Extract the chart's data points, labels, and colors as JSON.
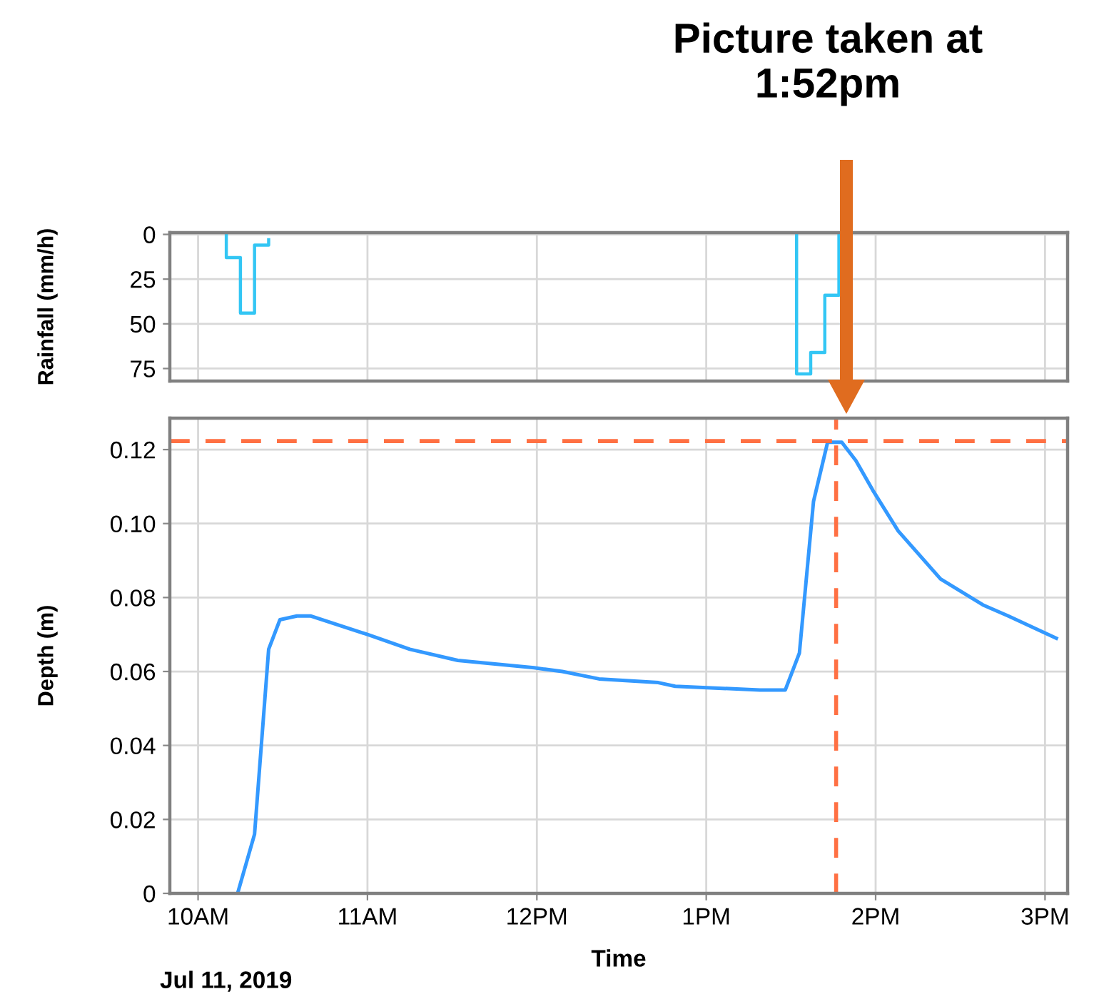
{
  "chart_data": [
    {
      "type": "step",
      "ylabel": "Rainfall (mm/h)",
      "xlim": [
        "2019-07-11T09:50",
        "2019-07-11T15:08"
      ],
      "xticks": [
        {
          "value": "2019-07-11T10:00",
          "label": null
        },
        {
          "value": "2019-07-11T11:00",
          "label": null
        },
        {
          "value": "2019-07-11T12:00",
          "label": null
        },
        {
          "value": "2019-07-11T13:00",
          "label": null
        },
        {
          "value": "2019-07-11T14:00",
          "label": null
        },
        {
          "value": "2019-07-11T15:00",
          "label": null
        }
      ],
      "ylim": [
        82,
        -1
      ],
      "yticks": [
        0,
        25,
        50,
        75
      ],
      "grid": true,
      "tick_labels": "y",
      "legend": false,
      "series": [
        {
          "color": "#33c6f4",
          "x": [
            "2019-07-11T10:10",
            "2019-07-11T10:10",
            "2019-07-11T10:15",
            "2019-07-11T10:20",
            "2019-07-11T10:25"
          ],
          "values": [
            0,
            13,
            44,
            6,
            3
          ]
        },
        {
          "color": "#33c6f4",
          "x": [
            "2019-07-11T13:32",
            "2019-07-11T13:32",
            "2019-07-11T13:37",
            "2019-07-11T13:42",
            "2019-07-11T13:47"
          ],
          "values": [
            0,
            78,
            66,
            34,
            0
          ]
        }
      ]
    },
    {
      "type": "line",
      "xlabel": "Time",
      "ylabel": "Depth (m)",
      "xlim": [
        "2019-07-11T09:50",
        "2019-07-11T15:08"
      ],
      "xticks": [
        {
          "value": "2019-07-11T10:00",
          "label": "10AM"
        },
        {
          "value": "2019-07-11T11:00",
          "label": "11AM"
        },
        {
          "value": "2019-07-11T12:00",
          "label": "12PM"
        },
        {
          "value": "2019-07-11T13:00",
          "label": "1PM"
        },
        {
          "value": "2019-07-11T14:00",
          "label": "2PM"
        },
        {
          "value": "2019-07-11T15:00",
          "label": "3PM"
        }
      ],
      "ylim": [
        0,
        0.1285
      ],
      "yticks": [
        0,
        0.02,
        0.04,
        0.06,
        0.08,
        {
          "value": 0.1,
          "label": "0.10"
        },
        0.12
      ],
      "grid": true,
      "legend": false,
      "series": [
        {
          "color": "#3399ff",
          "x": [
            "2019-07-11T10:14",
            "2019-07-11T10:20",
            "2019-07-11T10:25",
            "2019-07-11T10:29",
            "2019-07-11T10:35",
            "2019-07-11T10:40",
            "2019-07-11T11:00",
            "2019-07-11T11:15",
            "2019-07-11T11:32",
            "2019-07-11T11:59",
            "2019-07-11T12:09",
            "2019-07-11T12:22",
            "2019-07-11T12:43",
            "2019-07-11T12:49",
            "2019-07-11T13:19",
            "2019-07-11T13:28",
            "2019-07-11T13:33",
            "2019-07-11T13:38",
            "2019-07-11T13:43",
            "2019-07-11T13:48",
            "2019-07-11T13:53",
            "2019-07-11T13:59",
            "2019-07-11T14:08",
            "2019-07-11T14:23",
            "2019-07-11T14:38",
            "2019-07-11T14:47",
            "2019-07-11T15:04"
          ],
          "values": [
            0,
            0.016,
            0.066,
            0.074,
            0.075,
            0.075,
            0.07,
            0.066,
            0.063,
            0.061,
            0.06,
            0.058,
            0.057,
            0.056,
            0.055,
            0.055,
            0.065,
            0.106,
            0.122,
            0.122,
            0.117,
            0.109,
            0.098,
            0.085,
            0.078,
            0.075,
            0.069
          ]
        }
      ],
      "ref_lines": [
        {
          "axis": "y",
          "value": 0.1223,
          "color": "#ff7043",
          "line_style": "dashed"
        },
        {
          "axis": "x",
          "value": "2019-07-11T13:46",
          "color": "#ff7043",
          "line_style": "dashed"
        }
      ],
      "annotations": [
        "Picture taken at\n1:52pm",
        "Jul 11, 2019"
      ]
    }
  ]
}
